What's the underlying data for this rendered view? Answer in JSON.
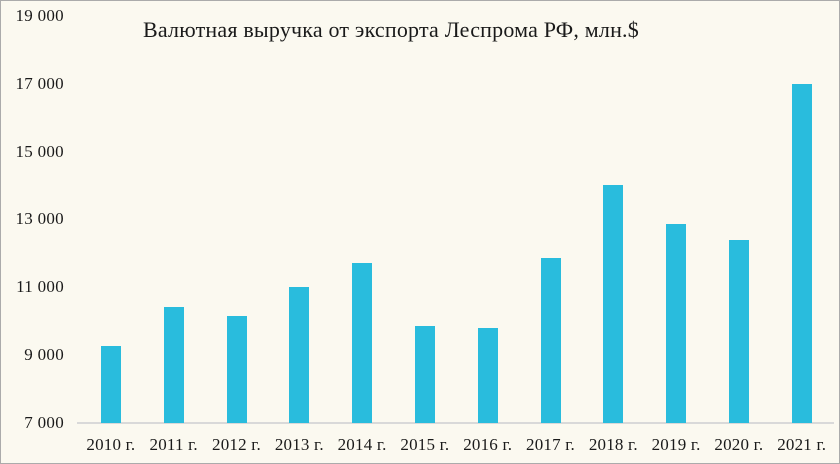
{
  "chart_data": {
    "type": "bar",
    "title": "Валютная выручка от экспорта Леспрома РФ, млн.$",
    "categories": [
      "2010 г.",
      "2011 г.",
      "2012 г.",
      "2013 г.",
      "2014 г.",
      "2015 г.",
      "2016 г.",
      "2017 г.",
      "2018 г.",
      "2019 г.",
      "2020 г.",
      "2021 г."
    ],
    "values": [
      9250,
      10400,
      10150,
      11000,
      11700,
      9850,
      9800,
      11850,
      14000,
      12850,
      12400,
      17000
    ],
    "xlabel": "",
    "ylabel": "",
    "ylim": [
      7000,
      19000
    ],
    "yticks": [
      {
        "value": 7000,
        "label": "7 000"
      },
      {
        "value": 9000,
        "label": "9 000"
      },
      {
        "value": 11000,
        "label": "11 000"
      },
      {
        "value": 13000,
        "label": "13 000"
      },
      {
        "value": 15000,
        "label": "15 000"
      },
      {
        "value": 17000,
        "label": "17 000"
      },
      {
        "value": 19000,
        "label": "19 000"
      }
    ],
    "grid": false,
    "legend": false,
    "colors": {
      "bar": "#29BCDD",
      "background": "#FBF9F0",
      "axis_line": "#D9D9D9",
      "text": "#1A1A1A",
      "border": "#ABABAB"
    }
  }
}
